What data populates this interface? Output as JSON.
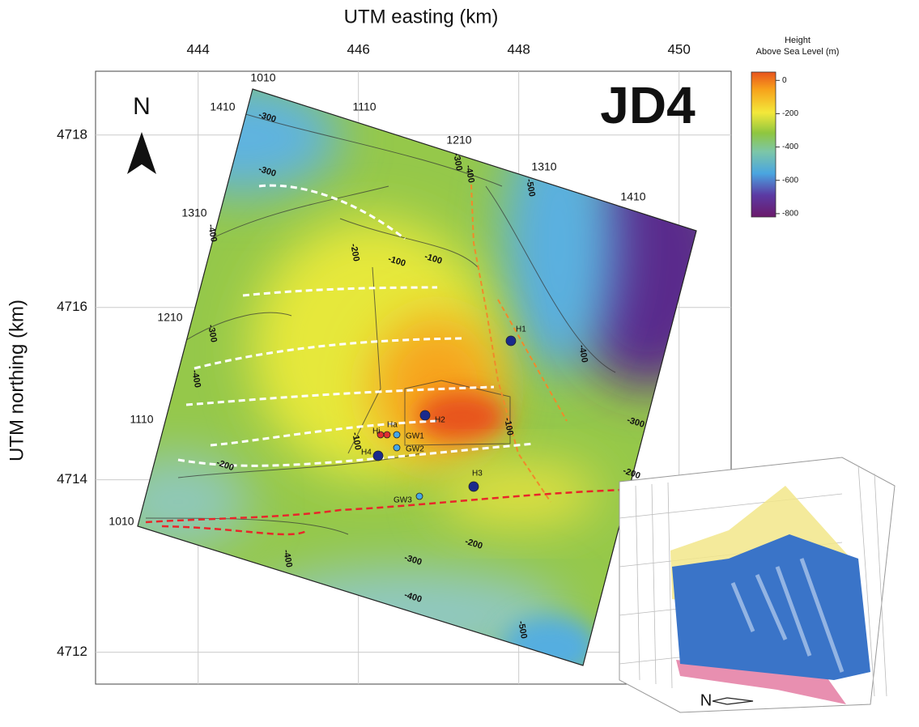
{
  "title": "JD4",
  "x_axis": {
    "label": "UTM easting (km)",
    "lim": [
      442.72,
      450.65
    ],
    "ticks": [
      444,
      446,
      448,
      450
    ]
  },
  "y_axis": {
    "label": "UTM northing (km)",
    "lim": [
      4711.63,
      4718.74
    ],
    "ticks": [
      4712,
      4714,
      4716,
      4718
    ]
  },
  "colorbar": {
    "title": [
      "Height",
      "Above Sea Level (m)"
    ],
    "lim": [
      -820,
      50
    ],
    "ticks": [
      0,
      -200,
      -400,
      -600,
      -800
    ]
  },
  "north_label": "N",
  "grid_labels": [
    "1010",
    "1410",
    "1110",
    "1210",
    "1310",
    "1410",
    "1310",
    "1210",
    "1110",
    "1010"
  ],
  "wells": [
    "H1",
    "H2",
    "H3",
    "H4",
    "Ha",
    "Hi",
    "GW1",
    "GW2",
    "GW3"
  ],
  "contour_labels": [
    -300,
    -300,
    -300,
    -400,
    -500,
    -400,
    -200,
    -100,
    -100,
    -300,
    -400,
    -400,
    -100,
    -200,
    -300,
    -100,
    -200,
    -200,
    -300,
    -400,
    -400,
    -500
  ],
  "inset_label": "N"
}
